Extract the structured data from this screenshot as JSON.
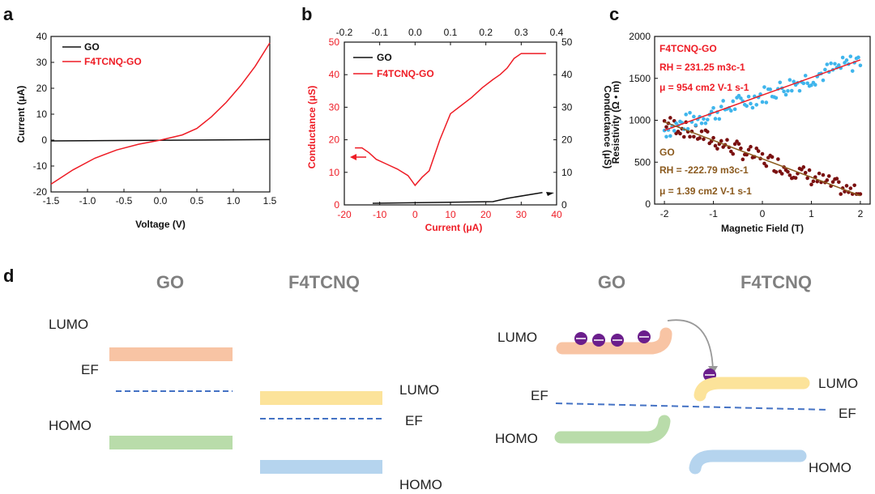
{
  "panel_letters": {
    "a": "a",
    "b": "b",
    "c": "c",
    "d": "d"
  },
  "colors": {
    "red": "#ee1c25",
    "black": "#111111",
    "cyan": "#3fb5ec",
    "maroon": "#7a1010",
    "brown": "#8b5a1e",
    "orange_bar": "#f8c4a4",
    "yellow_bar": "#fce39a",
    "green_bar": "#b9dcaa",
    "blue_bar": "#b5d4ee",
    "dash": "#4472c4",
    "electron": "#6b1e8c"
  },
  "chart_data": [
    {
      "id": "a",
      "type": "line",
      "xlabel": "Voltage (V)",
      "ylabel": "Current (μA)",
      "xlim": [
        -1.5,
        1.5
      ],
      "ylim": [
        -20,
        40
      ],
      "xticks": [
        "-1.5",
        "-1.0",
        "-0.5",
        "0.0",
        "0.5",
        "1.0",
        "1.5"
      ],
      "yticks": [
        "-20",
        "-10",
        "0",
        "10",
        "20",
        "30",
        "40"
      ],
      "legend": [
        "GO",
        "F4TCNQ-GO"
      ],
      "series": [
        {
          "name": "GO",
          "x": [
            -1.5,
            1.5
          ],
          "y": [
            -0.3,
            0.2
          ]
        },
        {
          "name": "F4TCNQ-GO",
          "x": [
            -1.5,
            -1.2,
            -0.9,
            -0.6,
            -0.3,
            0,
            0.3,
            0.5,
            0.7,
            0.9,
            1.1,
            1.3,
            1.5
          ],
          "y": [
            -17,
            -11.5,
            -7,
            -3.8,
            -1.6,
            0,
            2,
            4.5,
            9,
            14.5,
            21,
            28.5,
            37.5
          ]
        }
      ]
    },
    {
      "id": "b",
      "type": "line",
      "xlabel": "Current (μA)",
      "ylabel_left": "Conductance  (μS)",
      "ylabel_right": "Conductance  (μS)",
      "xlim": [
        -20,
        40
      ],
      "ylim_left": [
        0,
        50
      ],
      "top_xlim": [
        -0.2,
        0.4
      ],
      "ylim_right": [
        0,
        50
      ],
      "xticks": [
        "-20",
        "-10",
        "0",
        "10",
        "20",
        "30",
        "40"
      ],
      "top_xticks": [
        "-0.2",
        "-0.1",
        "0.0",
        "0.1",
        "0.2",
        "0.3",
        "0.4"
      ],
      "yticks": [
        "0",
        "10",
        "20",
        "30",
        "40",
        "50"
      ],
      "legend": [
        "GO",
        "F4TCNQ-GO"
      ],
      "series": [
        {
          "name": "F4TCNQ-GO",
          "x": [
            -17,
            -15,
            -13,
            -11,
            -8,
            -5,
            -2,
            0,
            2,
            4,
            7,
            10,
            13,
            16,
            19,
            22,
            24,
            26,
            28,
            30,
            32,
            35,
            37
          ],
          "y": [
            17.5,
            17.5,
            16,
            14,
            12.5,
            11,
            9,
            6,
            8.5,
            10.5,
            20,
            28,
            30.5,
            33,
            36,
            38.5,
            40,
            42,
            45,
            46.5,
            46.5,
            46.5,
            46.5
          ]
        },
        {
          "name": "GO",
          "x_top": [
            -0.12,
            0.22,
            0.26,
            0.36
          ],
          "y": [
            0.5,
            1,
            2,
            3.8
          ]
        }
      ]
    },
    {
      "id": "c",
      "type": "scatter",
      "xlabel": "Magnetic Field (T)",
      "ylabel": "Resistivity (Ω • m)",
      "xlim": [
        -2.2,
        2.2
      ],
      "ylim": [
        0,
        2000
      ],
      "xticks": [
        "-2",
        "-1",
        "0",
        "1",
        "2"
      ],
      "yticks": [
        "0",
        "500",
        "1000",
        "1500",
        "2000"
      ],
      "series": [
        {
          "name": "F4TCNQ-GO",
          "fit": [
            [
              -2,
              880
            ],
            [
              2,
              1720
            ]
          ]
        },
        {
          "name": "GO",
          "fit": [
            [
              -2,
              980
            ],
            [
              2,
              100
            ]
          ]
        }
      ],
      "annotations": {
        "f4_name": "F4TCNQ-GO",
        "f4_rh": "RH = 231.25 m3c-1",
        "f4_mu": "μ = 954 cm2 V-1 s-1",
        "go_name": "GO",
        "go_rh": "RH = -222.79 m3c-1",
        "go_mu": "μ = 1.39 cm2 V-1 s-1"
      }
    }
  ],
  "panel_d": {
    "left": {
      "go_title": "GO",
      "f4_title": "F4TCNQ",
      "lumo_go": "LUMO",
      "ef_go": "EF",
      "homo_go": "HOMO",
      "lumo_f4": "LUMO",
      "ef_f4": "EF",
      "homo_f4": "HOMO"
    },
    "right": {
      "go_title": "GO",
      "f4_title": "F4TCNQ",
      "lumo_go": "LUMO",
      "ef_go": "EF",
      "homo_go": "HOMO",
      "lumo_f4": "LUMO",
      "ef_f4": "EF",
      "homo_f4": "HOMO"
    }
  }
}
